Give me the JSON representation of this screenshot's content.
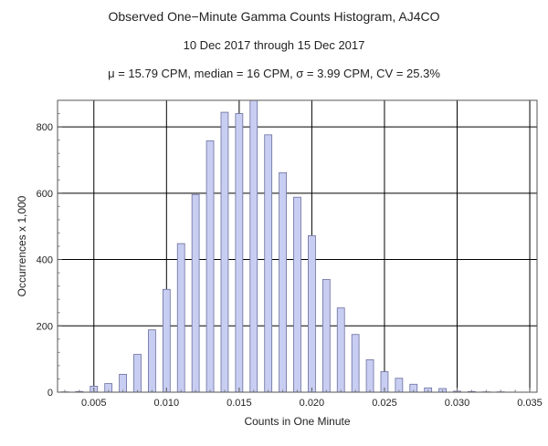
{
  "chart_data": {
    "type": "bar",
    "title": "Observed One−Minute Gamma Counts Histogram, AJ4CO",
    "subtitle": "10 Dec 2017 through 15 Dec 2017",
    "stats": "μ = 15.79 CPM,   median = 16 CPM,   σ = 3.99 CPM,   CV = 25.3%",
    "xlabel": "Counts in One Minute",
    "ylabel": "Occurrences x 1,000",
    "xlim": [
      0.0025,
      0.0355
    ],
    "ylim": [
      0,
      880
    ],
    "xticks": [
      0.005,
      0.01,
      0.015,
      0.02,
      0.025,
      0.03,
      0.035
    ],
    "xtick_labels": [
      "0.005",
      "0.010",
      "0.015",
      "0.020",
      "0.025",
      "0.030",
      "0.035"
    ],
    "yticks": [
      0,
      200,
      400,
      600,
      800
    ],
    "ytick_labels": [
      "0",
      "200",
      "400",
      "600",
      "800"
    ],
    "grid": true,
    "bar_color": "#c8cdf2",
    "bar_edge_color": "#6b6f9e",
    "x": [
      0.002,
      0.003,
      0.004,
      0.005,
      0.006,
      0.007,
      0.008,
      0.009,
      0.01,
      0.011,
      0.012,
      0.013,
      0.014,
      0.015,
      0.016,
      0.017,
      0.018,
      0.019,
      0.02,
      0.021,
      0.022,
      0.023,
      0.024,
      0.025,
      0.026,
      0.027,
      0.028,
      0.029,
      0.03,
      0.031,
      0.032,
      0.033,
      0.034
    ],
    "values": [
      0,
      1,
      2,
      18,
      26,
      54,
      114,
      188,
      310,
      448,
      596,
      758,
      844,
      840,
      884,
      776,
      662,
      588,
      472,
      340,
      254,
      174,
      98,
      62,
      42,
      24,
      13,
      11,
      3,
      2,
      1,
      1,
      0
    ]
  }
}
